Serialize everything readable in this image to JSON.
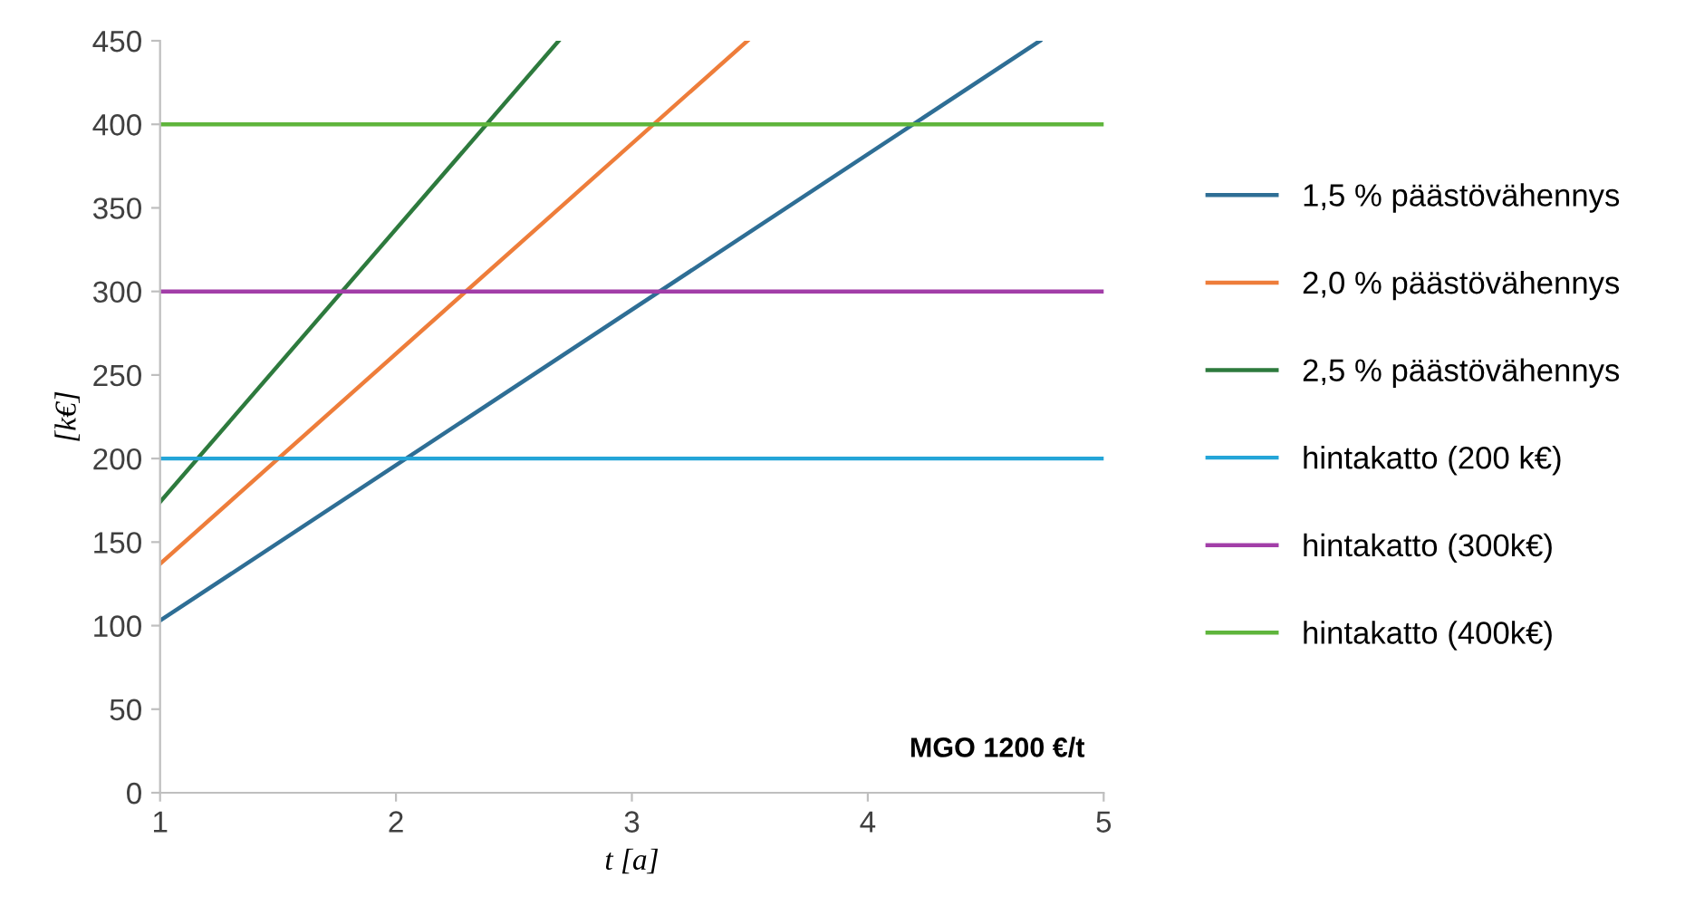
{
  "chart_data": {
    "type": "line",
    "xlabel": "t [a]",
    "ylabel": "[k€]",
    "xlim": [
      1,
      5
    ],
    "xticks": [
      1,
      2,
      3,
      4,
      5
    ],
    "ylim": [
      0,
      450
    ],
    "yticks": [
      0,
      50,
      100,
      150,
      200,
      250,
      300,
      350,
      400,
      450
    ],
    "grid": false,
    "legend": "right",
    "marker": "none",
    "line_style": "solid",
    "annotations": [
      "MGO 1200 €/t"
    ],
    "series": [
      {
        "name": "1,5 % päästövähennys",
        "color": "#2e6e95",
        "x": [
          1,
          4.73
        ],
        "values": [
          103,
          450
        ]
      },
      {
        "name": "2,0 % päästövähennys",
        "color": "#ee7d3a",
        "x": [
          1,
          3.49
        ],
        "values": [
          137,
          450
        ]
      },
      {
        "name": "2,5 % päästövähennys",
        "color": "#2d7a3d",
        "x": [
          1,
          2.69
        ],
        "values": [
          174,
          450
        ]
      },
      {
        "name": "hintakatto (200 k€)",
        "color": "#24a5d8",
        "x": [
          1,
          5
        ],
        "values": [
          200,
          200
        ]
      },
      {
        "name": "hintakatto (300k€)",
        "color": "#a23ea8",
        "x": [
          1,
          5
        ],
        "values": [
          300,
          300
        ]
      },
      {
        "name": "hintakatto (400k€)",
        "color": "#5fb53c",
        "x": [
          1,
          5
        ],
        "values": [
          400,
          400
        ]
      }
    ]
  }
}
